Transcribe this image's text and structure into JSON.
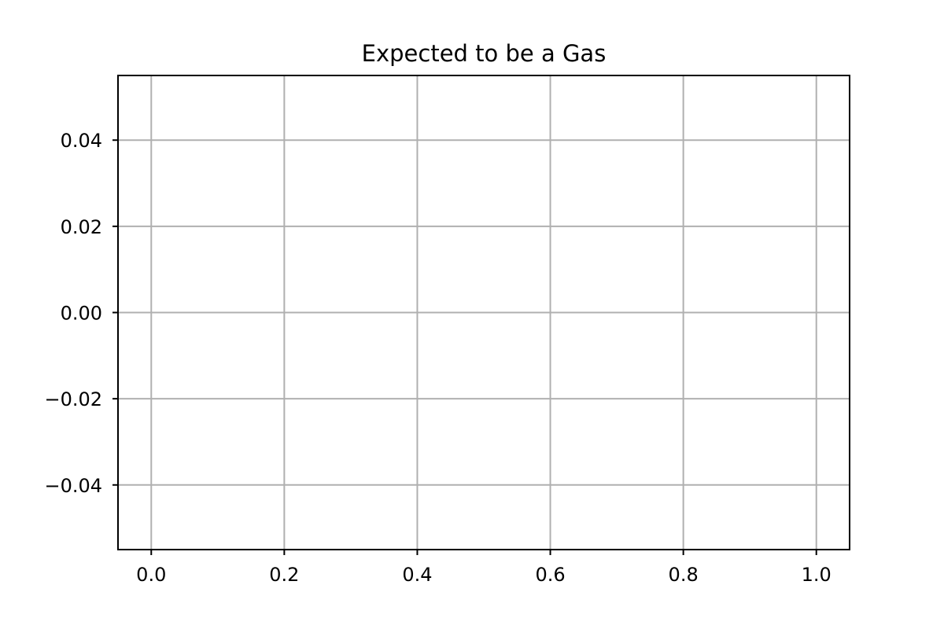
{
  "chart_data": {
    "type": "line",
    "title": "Expected to be a Gas",
    "xlabel": "",
    "ylabel": "",
    "xlim": [
      -0.05,
      1.05
    ],
    "ylim": [
      -0.055,
      0.055
    ],
    "x_ticks": [
      0.0,
      0.2,
      0.4,
      0.6,
      0.8,
      1.0
    ],
    "x_tick_labels": [
      "0.0",
      "0.2",
      "0.4",
      "0.6",
      "0.8",
      "1.0"
    ],
    "y_ticks": [
      0.04,
      0.02,
      0.0,
      -0.02,
      -0.04
    ],
    "y_tick_labels": [
      "0.04",
      "0.02",
      "0.00",
      "−0.02",
      "−0.04"
    ],
    "series": [],
    "grid": true,
    "legend": "none"
  },
  "colors": {
    "grid": "#b0b0b0",
    "axes": "#000000",
    "background": "#ffffff"
  }
}
